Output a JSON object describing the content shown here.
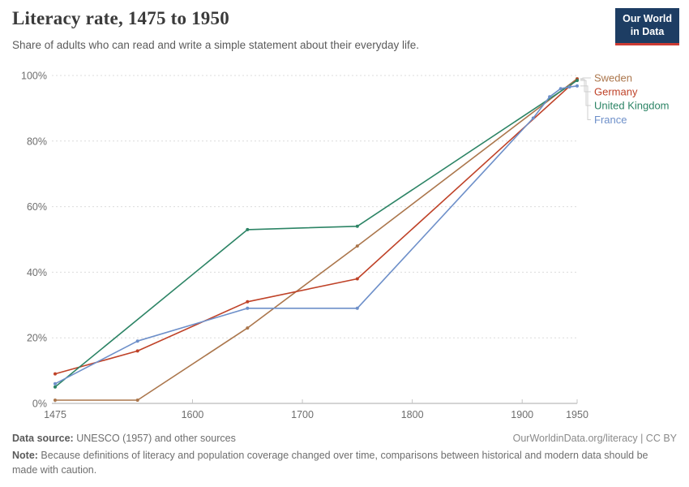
{
  "header": {
    "title": "Literacy rate, 1475 to 1950",
    "subtitle": "Share of adults who can read and write a simple statement about their everyday life.",
    "logo": {
      "line1": "Our World",
      "line2": "in Data"
    }
  },
  "chart_data": {
    "type": "line",
    "title": "Literacy rate, 1475 to 1950",
    "xlabel": "",
    "ylabel": "",
    "xlim": [
      1475,
      1950
    ],
    "ylim": [
      0,
      100
    ],
    "x_ticks": [
      1475,
      1600,
      1700,
      1800,
      1900,
      1950
    ],
    "y_ticks": [
      0,
      20,
      40,
      60,
      80,
      100
    ],
    "y_tick_suffix": "%",
    "grid": "horizontal-dashed",
    "legend_position": "right",
    "series": [
      {
        "name": "Sweden",
        "color": "#ab764c",
        "points": [
          [
            1475,
            1
          ],
          [
            1550,
            1
          ],
          [
            1650,
            23
          ],
          [
            1750,
            48
          ],
          [
            1950,
            99
          ]
        ]
      },
      {
        "name": "Germany",
        "color": "#bf4228",
        "points": [
          [
            1475,
            9
          ],
          [
            1550,
            16
          ],
          [
            1650,
            31
          ],
          [
            1750,
            38
          ],
          [
            1950,
            98.8
          ]
        ]
      },
      {
        "name": "United Kingdom",
        "color": "#2c8465",
        "points": [
          [
            1475,
            5
          ],
          [
            1650,
            53
          ],
          [
            1750,
            54
          ],
          [
            1950,
            98.5
          ]
        ]
      },
      {
        "name": "France",
        "color": "#6d8fc9",
        "points": [
          [
            1475,
            6
          ],
          [
            1550,
            19
          ],
          [
            1650,
            29
          ],
          [
            1750,
            29
          ],
          [
            1910,
            87
          ],
          [
            1925,
            93.5
          ],
          [
            1935,
            96
          ],
          [
            1943,
            96.5
          ],
          [
            1950,
            96.8
          ]
        ]
      }
    ]
  },
  "footer": {
    "datasource_label": "Data source:",
    "datasource_value": " UNESCO (1957) and other sources",
    "citation": "OurWorldinData.org/literacy | CC BY",
    "note_label": "Note:",
    "note_value": " Because definitions of literacy and population coverage changed over time, comparisons between historical and modern data should be made with caution."
  }
}
